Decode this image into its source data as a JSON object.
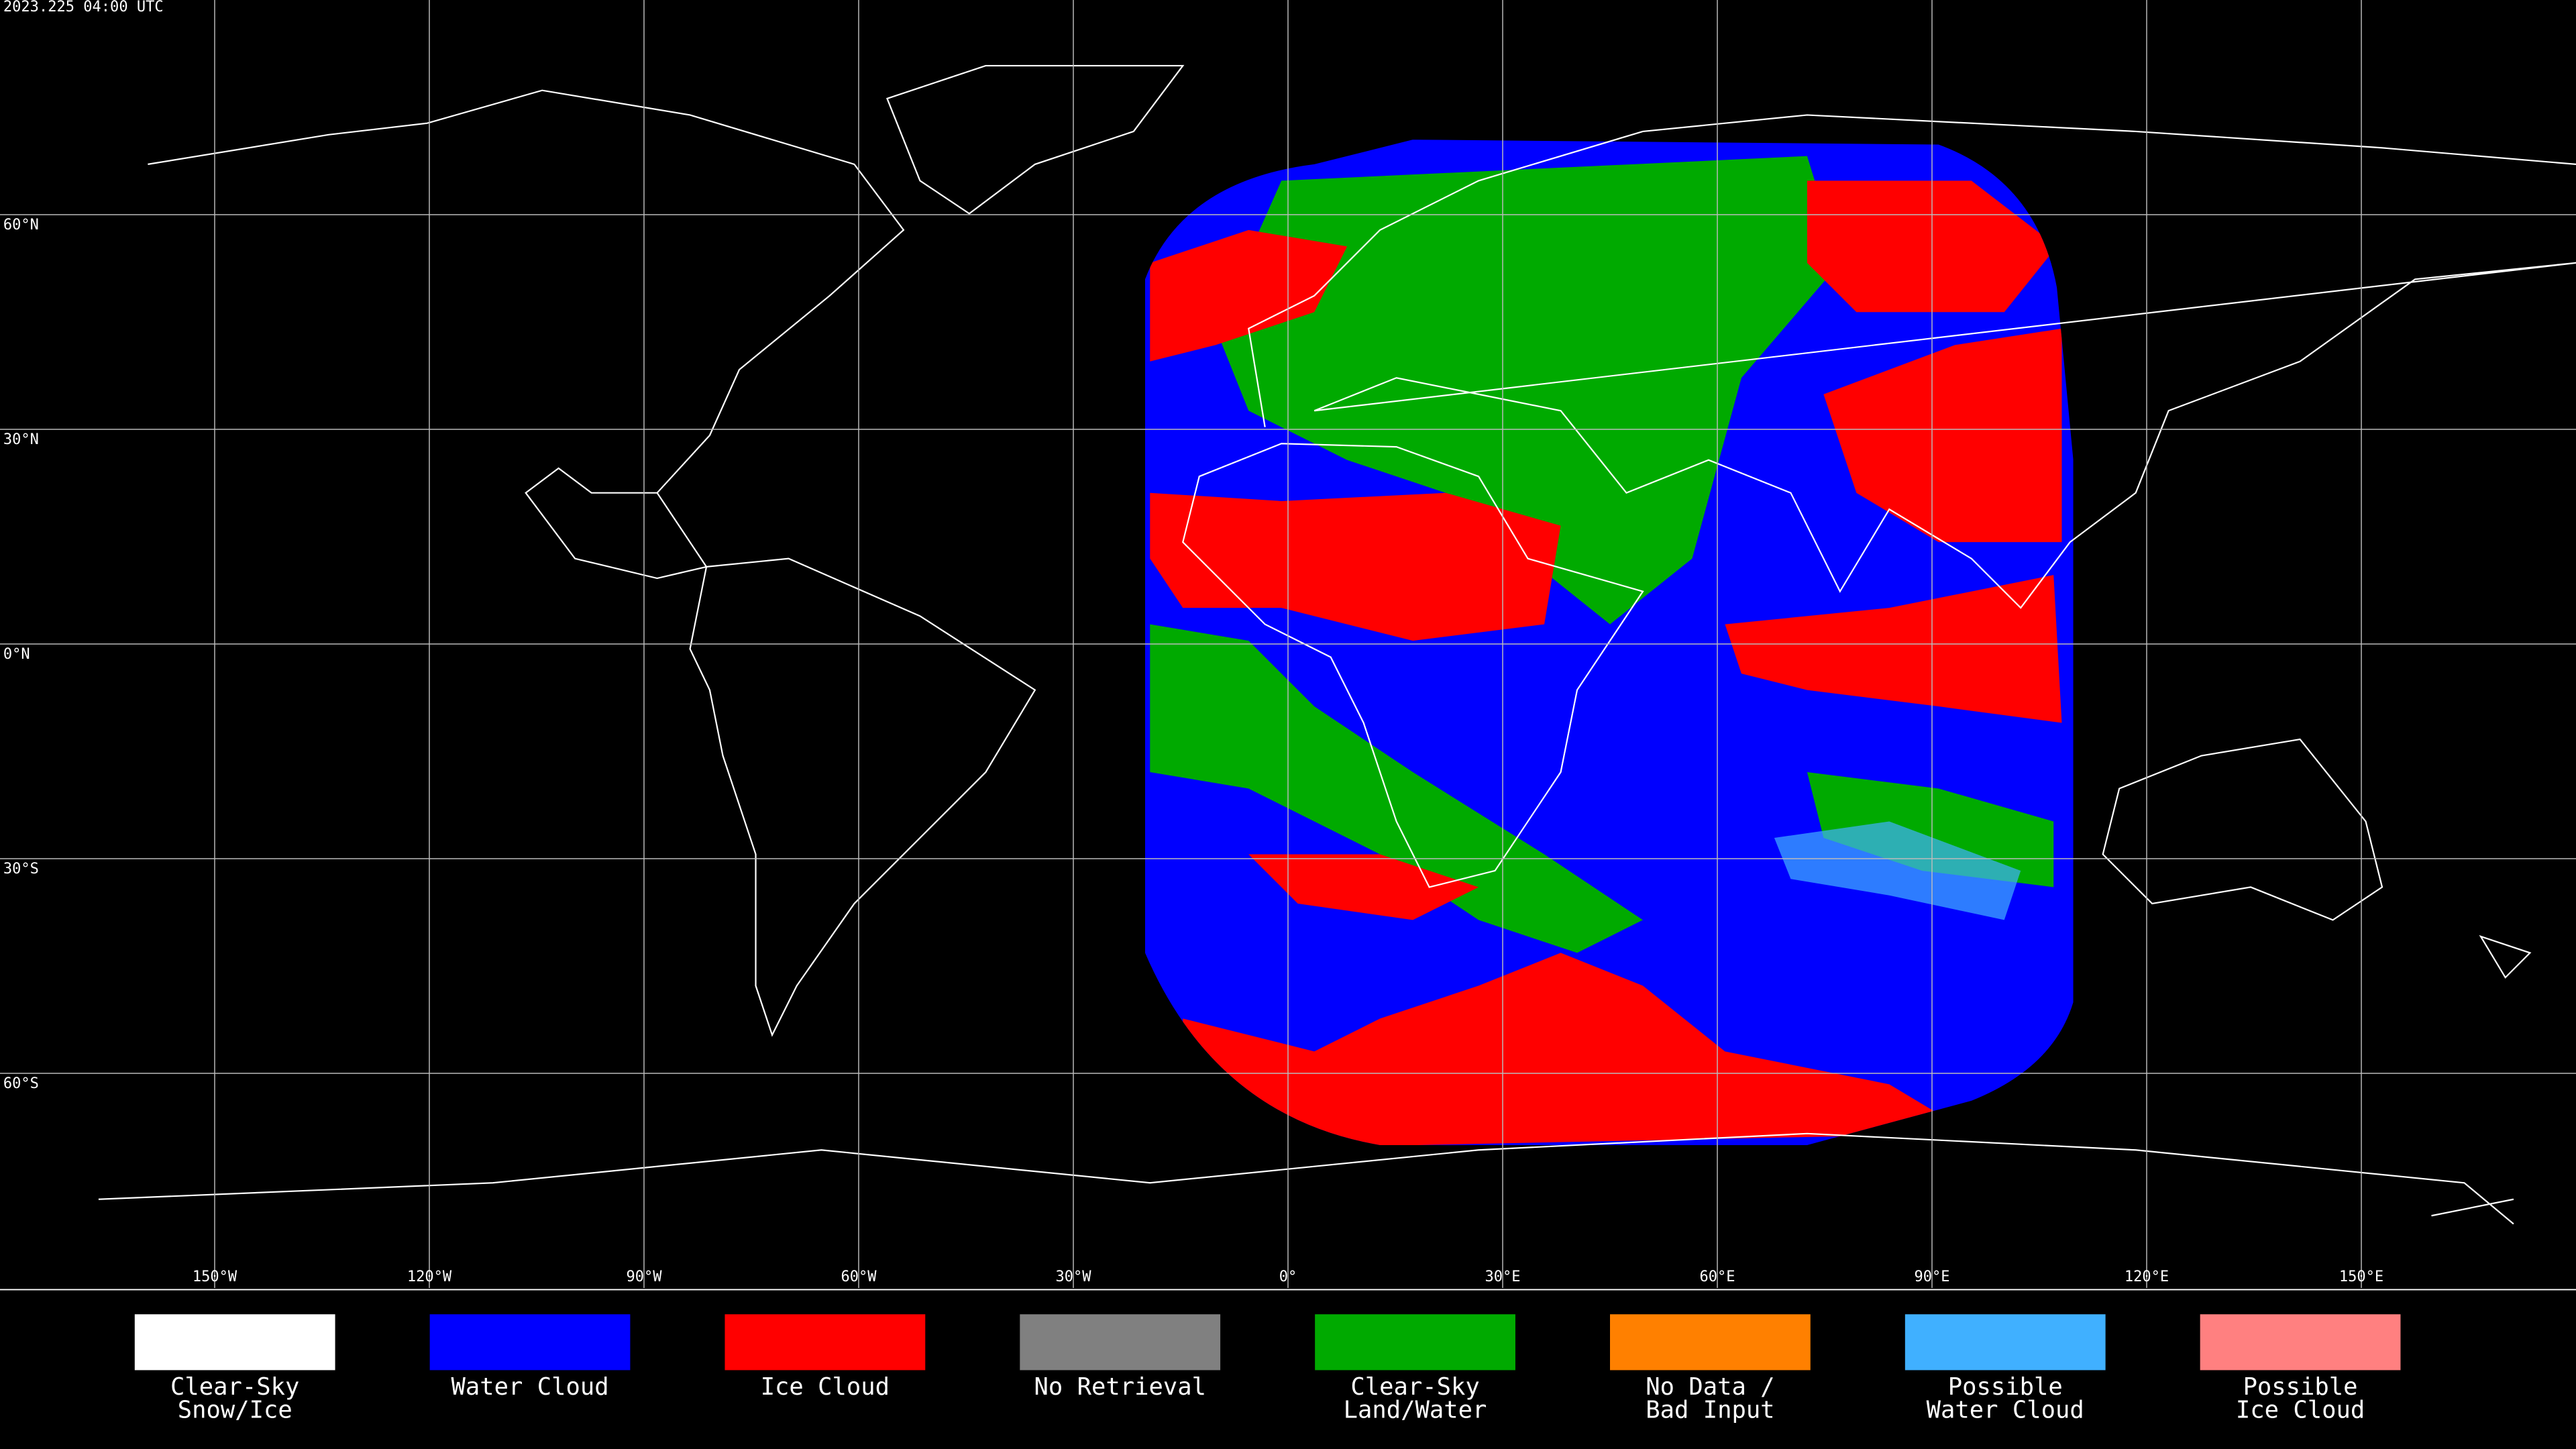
{
  "header": {
    "timestamp": "2023.225 04:00 UTC"
  },
  "map": {
    "lat_lines": [
      {
        "value": 60,
        "label": "60°N"
      },
      {
        "value": 30,
        "label": "30°N"
      },
      {
        "value": 0,
        "label": "0°N"
      },
      {
        "value": -30,
        "label": "30°S"
      },
      {
        "value": -60,
        "label": "60°S"
      }
    ],
    "lon_lines": [
      {
        "value": -150,
        "label": "150°W"
      },
      {
        "value": -120,
        "label": "120°W"
      },
      {
        "value": -90,
        "label": "90°W"
      },
      {
        "value": -60,
        "label": "60°W"
      },
      {
        "value": -30,
        "label": "30°W"
      },
      {
        "value": 0,
        "label": "0°"
      },
      {
        "value": 30,
        "label": "30°E"
      },
      {
        "value": 60,
        "label": "60°E"
      },
      {
        "value": 90,
        "label": "90°E"
      },
      {
        "value": 120,
        "label": "120°E"
      },
      {
        "value": 150,
        "label": "150°E"
      }
    ]
  },
  "legend": {
    "items": [
      {
        "lines": [
          "Clear-Sky",
          "Snow/Ice"
        ],
        "color": "#ffffff"
      },
      {
        "lines": [
          "Water Cloud"
        ],
        "color": "#0000ff"
      },
      {
        "lines": [
          "Ice Cloud"
        ],
        "color": "#ff0000"
      },
      {
        "lines": [
          "No Retrieval"
        ],
        "color": "#808080"
      },
      {
        "lines": [
          "Clear-Sky",
          "Land/Water"
        ],
        "color": "#00aa00"
      },
      {
        "lines": [
          "No Data /",
          "Bad Input"
        ],
        "color": "#ff8000"
      },
      {
        "lines": [
          "Possible",
          "Water Cloud"
        ],
        "color": "#40b0ff"
      },
      {
        "lines": [
          "Possible",
          "Ice Cloud"
        ],
        "color": "#ff8080"
      }
    ]
  }
}
